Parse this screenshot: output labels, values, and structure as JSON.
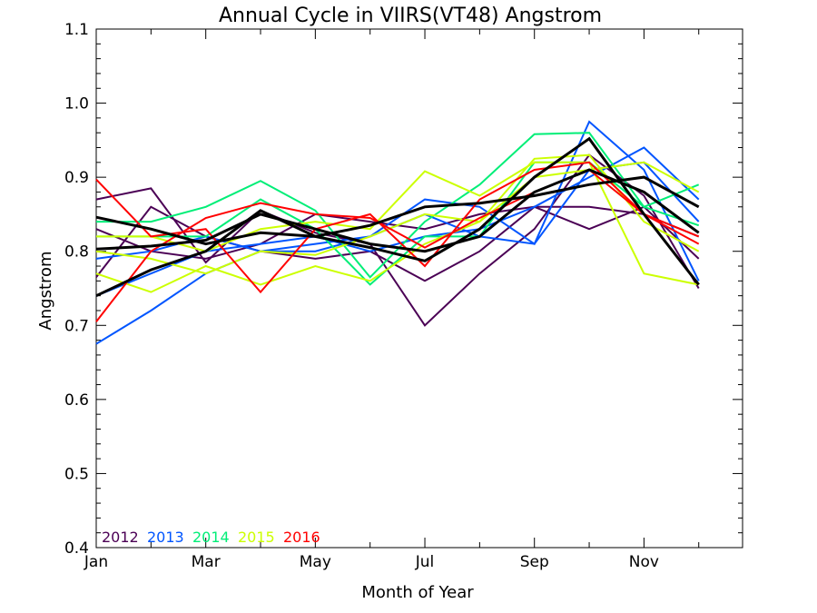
{
  "chart_data": {
    "type": "line",
    "title": "Annual Cycle in VIIRS(VT48) Angstrom",
    "xlabel": "Month of Year",
    "ylabel": "Angstrom",
    "xlim": [
      1,
      12.8
    ],
    "ylim": [
      0.4,
      1.1
    ],
    "x_ticks": [
      {
        "x": 1,
        "label": "Jan"
      },
      {
        "x": 3,
        "label": "Mar"
      },
      {
        "x": 5,
        "label": "May"
      },
      {
        "x": 7,
        "label": "Jul"
      },
      {
        "x": 9,
        "label": "Sep"
      },
      {
        "x": 11,
        "label": "Nov"
      }
    ],
    "y_ticks": [
      {
        "y": 0.4,
        "label": "0.4"
      },
      {
        "y": 0.5,
        "label": "0.5"
      },
      {
        "y": 0.6,
        "label": "0.6"
      },
      {
        "y": 0.7,
        "label": "0.7"
      },
      {
        "y": 0.8,
        "label": "0.8"
      },
      {
        "y": 0.9,
        "label": "0.9"
      },
      {
        "y": 1.0,
        "label": "1.0"
      },
      {
        "y": 1.1,
        "label": "1.1"
      }
    ],
    "legend_position": "bottom-left",
    "legend": [
      {
        "label": "2012",
        "color": "#4b0055"
      },
      {
        "label": "2013",
        "color": "#0055ff"
      },
      {
        "label": "2014",
        "color": "#00ee77"
      },
      {
        "label": "2015",
        "color": "#ccff00"
      },
      {
        "label": "2016",
        "color": "#ff0000"
      }
    ],
    "x": [
      1,
      2,
      3,
      4,
      5,
      6,
      7,
      8,
      9,
      10,
      11,
      12
    ],
    "series": [
      {
        "color": "#4b0055",
        "width": 2,
        "values": [
          0.87,
          0.885,
          0.785,
          0.855,
          0.825,
          0.81,
          0.7,
          0.77,
          0.83,
          0.93,
          0.875,
          0.75
        ]
      },
      {
        "color": "#4b0055",
        "width": 2,
        "values": [
          0.765,
          0.86,
          0.82,
          0.8,
          0.79,
          0.8,
          0.76,
          0.8,
          0.86,
          0.83,
          0.86,
          0.79
        ]
      },
      {
        "color": "#4b0055",
        "width": 2,
        "values": [
          0.83,
          0.8,
          0.79,
          0.81,
          0.85,
          0.84,
          0.83,
          0.85,
          0.86,
          0.86,
          0.85,
          0.82
        ]
      },
      {
        "color": "#0055ff",
        "width": 2,
        "values": [
          0.675,
          0.72,
          0.77,
          0.8,
          0.8,
          0.82,
          0.87,
          0.86,
          0.81,
          0.975,
          0.91,
          0.76
        ]
      },
      {
        "color": "#0055ff",
        "width": 2,
        "values": [
          0.79,
          0.8,
          0.82,
          0.8,
          0.81,
          0.82,
          0.85,
          0.82,
          0.81,
          0.91,
          0.92,
          0.84
        ]
      },
      {
        "color": "#0055ff",
        "width": 2,
        "values": [
          0.74,
          0.77,
          0.8,
          0.81,
          0.82,
          0.8,
          0.82,
          0.83,
          0.86,
          0.9,
          0.94,
          0.87
        ]
      },
      {
        "color": "#00ee77",
        "width": 2,
        "values": [
          0.84,
          0.84,
          0.86,
          0.895,
          0.855,
          0.765,
          0.84,
          0.89,
          0.958,
          0.96,
          0.86,
          0.835
        ]
      },
      {
        "color": "#00ee77",
        "width": 2,
        "values": [
          0.82,
          0.82,
          0.82,
          0.87,
          0.83,
          0.755,
          0.82,
          0.82,
          0.92,
          0.92,
          0.86,
          0.89
        ]
      },
      {
        "color": "#ccff00",
        "width": 2,
        "values": [
          0.82,
          0.82,
          0.8,
          0.83,
          0.84,
          0.83,
          0.908,
          0.875,
          0.92,
          0.92,
          0.77,
          0.755
        ]
      },
      {
        "color": "#ccff00",
        "width": 2,
        "values": [
          0.77,
          0.745,
          0.78,
          0.755,
          0.78,
          0.76,
          0.81,
          0.84,
          0.925,
          0.93,
          0.84,
          0.8
        ]
      },
      {
        "color": "#ccff00",
        "width": 2,
        "values": [
          0.8,
          0.79,
          0.77,
          0.8,
          0.795,
          0.82,
          0.85,
          0.84,
          0.9,
          0.91,
          0.92,
          0.88
        ]
      },
      {
        "color": "#ff0000",
        "width": 2,
        "values": [
          0.897,
          0.82,
          0.83,
          0.745,
          0.83,
          0.85,
          0.78,
          0.87,
          0.91,
          0.92,
          0.85,
          0.82
        ]
      },
      {
        "color": "#ff0000",
        "width": 2,
        "values": [
          0.705,
          0.8,
          0.845,
          0.865,
          0.85,
          0.845,
          0.805,
          0.845,
          0.88,
          0.91,
          0.85,
          0.81
        ]
      },
      {
        "color": "#000000",
        "width": 3,
        "values": [
          0.74,
          0.775,
          0.8,
          0.855,
          0.82,
          0.805,
          0.787,
          0.83,
          0.9,
          0.952,
          0.85,
          0.755
        ]
      },
      {
        "color": "#000000",
        "width": 3,
        "values": [
          0.846,
          0.83,
          0.81,
          0.825,
          0.82,
          0.835,
          0.86,
          0.865,
          0.875,
          0.89,
          0.9,
          0.86
        ]
      },
      {
        "color": "#000000",
        "width": 3,
        "values": [
          0.803,
          0.807,
          0.815,
          0.85,
          0.83,
          0.81,
          0.8,
          0.82,
          0.88,
          0.91,
          0.88,
          0.825
        ]
      }
    ]
  }
}
